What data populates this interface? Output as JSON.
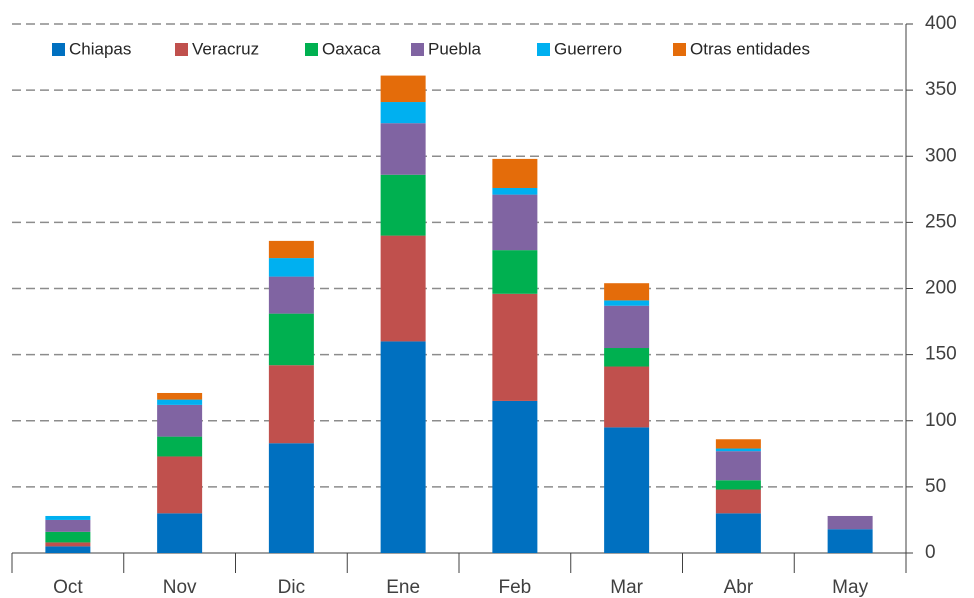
{
  "chart_data": {
    "type": "stacked_bar",
    "categories": [
      "Oct",
      "Nov",
      "Dic",
      "Ene",
      "Feb",
      "Mar",
      "Abr",
      "May"
    ],
    "series": [
      {
        "name": "Chiapas",
        "color": "#0070c0",
        "values": [
          5,
          30,
          83,
          160,
          115,
          95,
          30,
          18
        ]
      },
      {
        "name": "Veracruz",
        "color": "#c0504d",
        "values": [
          3,
          43,
          59,
          80,
          81,
          46,
          18,
          0
        ]
      },
      {
        "name": "Oaxaca",
        "color": "#00b050",
        "values": [
          8,
          15,
          39,
          46,
          33,
          14,
          7,
          0
        ]
      },
      {
        "name": "Puebla",
        "color": "#8064a2",
        "values": [
          9,
          24,
          28,
          39,
          42,
          32,
          22,
          10
        ]
      },
      {
        "name": "Guerrero",
        "color": "#00b0f0",
        "values": [
          3,
          4,
          14,
          16,
          5,
          4,
          2,
          0
        ]
      },
      {
        "name": "Otras entidades",
        "color": "#e46c0a",
        "values": [
          0,
          5,
          13,
          20,
          22,
          13,
          7,
          0
        ]
      }
    ],
    "ylim": [
      0,
      400
    ],
    "yticks": [
      0,
      50,
      100,
      150,
      200,
      250,
      300,
      350,
      400
    ],
    "grid": true,
    "y_axis_side": "right",
    "legend": "top"
  }
}
